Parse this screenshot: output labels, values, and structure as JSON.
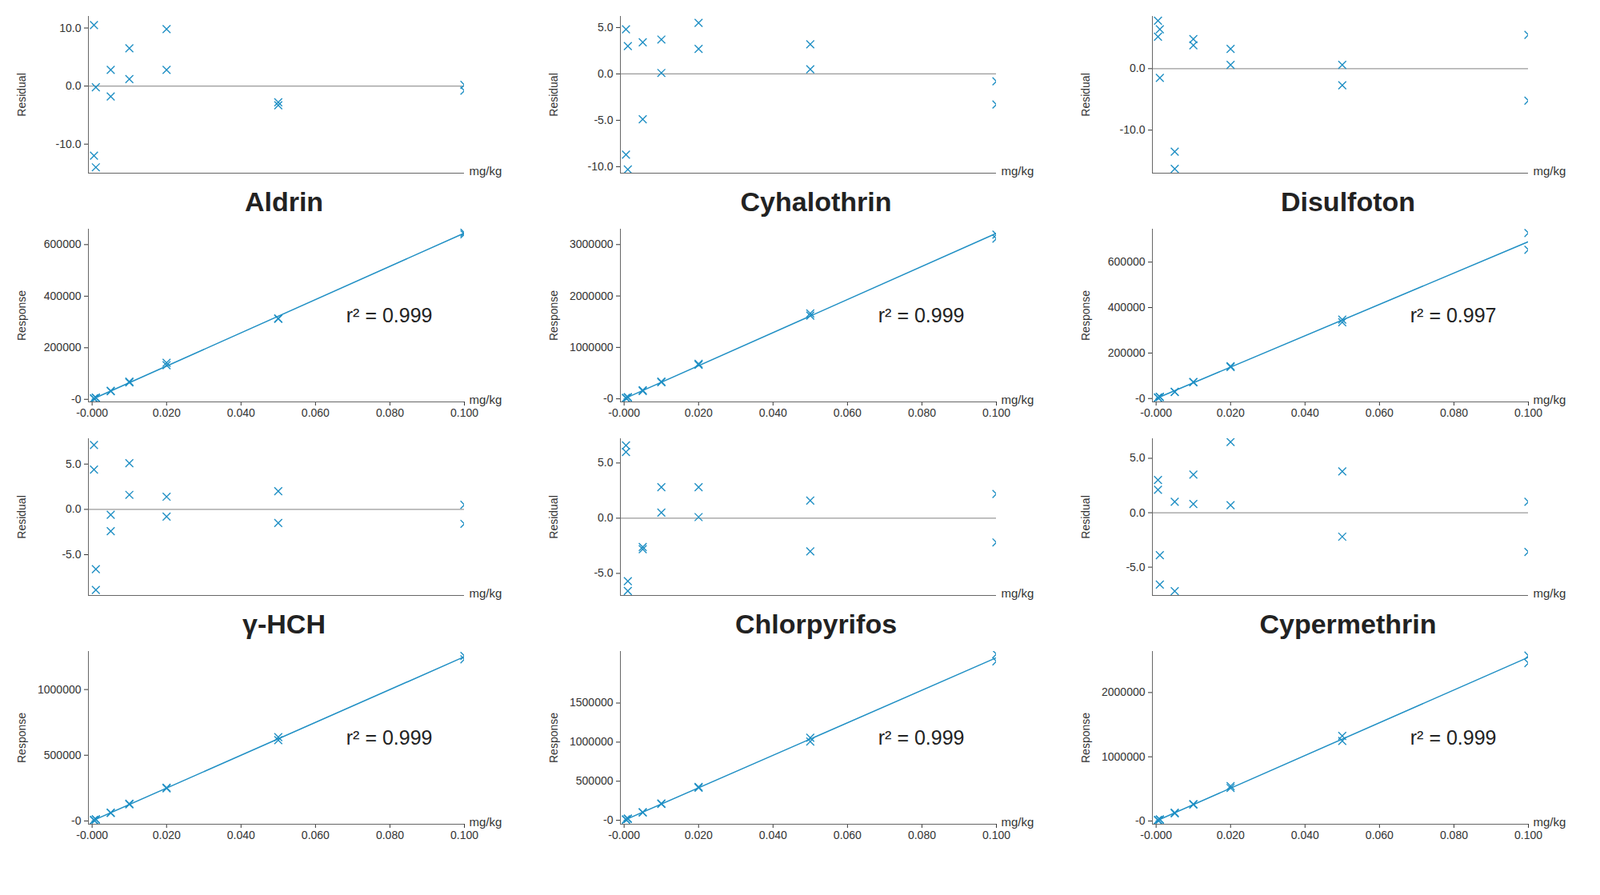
{
  "chart_data": [
    {
      "type": "scatter",
      "ylabel": "Residual",
      "xlabel": "mg/kg",
      "tick_labels": "y",
      "marker": "x",
      "color": "#1f8fc4",
      "hline": 0,
      "x": [
        0.0005,
        0.0005,
        0.001,
        0.001,
        0.005,
        0.005,
        0.01,
        0.01,
        0.02,
        0.02,
        0.05,
        0.05,
        0.1,
        0.1
      ],
      "values": [
        10.5,
        -12,
        -0.2,
        -14,
        2.8,
        -1.8,
        6.5,
        1.2,
        9.8,
        2.8,
        -2.8,
        -3.3,
        0.2,
        -0.8
      ],
      "xlim": [
        -0.001,
        0.1
      ],
      "ylim": [
        -15,
        12
      ],
      "yticks": [
        {
          "value": -10,
          "label": "-10.0"
        },
        {
          "value": 0,
          "label": "0.0"
        },
        {
          "value": 10,
          "label": "10.0"
        }
      ]
    },
    {
      "type": "scatter",
      "title": "Aldrin",
      "ylabel": "Response",
      "xlabel": "mg/kg",
      "marker": "x",
      "color": "#1f8fc4",
      "annotation": "r² = 0.999",
      "x": [
        0.0005,
        0.0005,
        0.001,
        0.001,
        0.005,
        0.005,
        0.01,
        0.01,
        0.02,
        0.02,
        0.05,
        0.05,
        0.1,
        0.1
      ],
      "values": [
        3564,
        2838,
        6437,
        5547,
        33153,
        31670,
        68693,
        65274,
        141642,
        132612,
        313470,
        311858,
        646290,
        639840
      ],
      "fit": {
        "x": [
          0,
          0.1
        ],
        "values": [
          0,
          645000
        ]
      },
      "xlim": [
        -0.001,
        0.1
      ],
      "ylim": [
        -10000,
        660000
      ],
      "xticks": [
        {
          "value": 0,
          "label": "-0.000"
        },
        {
          "value": 0.02,
          "label": "0.020"
        },
        {
          "value": 0.04,
          "label": "0.040"
        },
        {
          "value": 0.06,
          "label": "0.060"
        },
        {
          "value": 0.08,
          "label": "0.080"
        },
        {
          "value": 0.1,
          "label": "0.100"
        }
      ],
      "yticks": [
        {
          "value": 0,
          "label": "-0"
        },
        200000,
        400000,
        600000
      ]
    },
    {
      "type": "scatter",
      "ylabel": "Residual",
      "xlabel": "mg/kg",
      "tick_labels": "y",
      "marker": "x",
      "color": "#1f8fc4",
      "hline": 0,
      "x": [
        0.0005,
        0.0005,
        0.001,
        0.001,
        0.005,
        0.005,
        0.01,
        0.01,
        0.02,
        0.02,
        0.05,
        0.05,
        0.1,
        0.1
      ],
      "values": [
        4.8,
        -8.7,
        3.0,
        -10.3,
        3.4,
        -4.9,
        3.7,
        0.1,
        5.5,
        2.7,
        3.2,
        0.5,
        -0.8,
        -3.3
      ],
      "xlim": [
        -0.001,
        0.1
      ],
      "ylim": [
        -10.7,
        6.2
      ],
      "yticks": [
        {
          "value": -10,
          "label": "-10.0"
        },
        {
          "value": -5,
          "label": "-5.0"
        },
        {
          "value": 0,
          "label": "0.0"
        },
        {
          "value": 5,
          "label": "5.0"
        }
      ]
    },
    {
      "type": "scatter",
      "title": "Cyhalothrin",
      "ylabel": "Response",
      "xlabel": "mg/kg",
      "marker": "x",
      "color": "#1f8fc4",
      "annotation": "r² = 0.999",
      "x": [
        0.0005,
        0.0005,
        0.001,
        0.001,
        0.005,
        0.005,
        0.01,
        0.01,
        0.02,
        0.02,
        0.05,
        0.05,
        0.1,
        0.1
      ],
      "values": [
        16873,
        14699,
        33166,
        28883,
        166474,
        153111,
        333914,
        322322,
        679420,
        661388,
        1661520,
        1618050,
        3194240,
        3113740
      ],
      "fit": {
        "x": [
          0,
          0.1
        ],
        "values": [
          0,
          3220000
        ]
      },
      "xlim": [
        -0.001,
        0.1
      ],
      "ylim": [
        -60000,
        3300000
      ],
      "xticks": [
        {
          "value": 0,
          "label": "-0.000"
        },
        {
          "value": 0.02,
          "label": "0.020"
        },
        {
          "value": 0.04,
          "label": "0.040"
        },
        {
          "value": 0.06,
          "label": "0.060"
        },
        {
          "value": 0.08,
          "label": "0.080"
        },
        {
          "value": 0.1,
          "label": "0.100"
        }
      ],
      "yticks": [
        {
          "value": 0,
          "label": "-0"
        },
        1000000,
        2000000,
        3000000
      ]
    },
    {
      "type": "scatter",
      "ylabel": "Residual",
      "xlabel": "mg/kg",
      "tick_labels": "y",
      "marker": "x",
      "color": "#1f8fc4",
      "hline": 0,
      "x": [
        0.0005,
        0.0005,
        0.001,
        0.001,
        0.005,
        0.005,
        0.01,
        0.01,
        0.02,
        0.02,
        0.05,
        0.05,
        0.1,
        0.1
      ],
      "values": [
        7.8,
        5.2,
        6.4,
        -1.5,
        -13.5,
        -16.3,
        4.8,
        3.8,
        3.2,
        0.6,
        0.6,
        -2.7,
        5.5,
        -5.2
      ],
      "xlim": [
        -0.001,
        0.1
      ],
      "ylim": [
        -17,
        8.5
      ],
      "yticks": [
        {
          "value": -10,
          "label": "-10.0"
        },
        {
          "value": 0,
          "label": "0.0"
        }
      ]
    },
    {
      "type": "scatter",
      "title": "Disulfoton",
      "ylabel": "Response",
      "xlabel": "mg/kg",
      "marker": "x",
      "color": "#1f8fc4",
      "annotation": "r² = 0.997",
      "x": [
        0.0005,
        0.0005,
        0.001,
        0.001,
        0.005,
        0.005,
        0.01,
        0.01,
        0.02,
        0.02,
        0.05,
        0.05,
        0.1,
        0.1
      ],
      "values": [
        3719,
        3629,
        7342,
        6797,
        29843,
        28877,
        72312,
        71622,
        142416,
        138828,
        347070,
        335685,
        727950,
        654120
      ],
      "fit": {
        "x": [
          0,
          0.1
        ],
        "values": [
          0,
          690000
        ]
      },
      "xlim": [
        -0.001,
        0.1
      ],
      "ylim": [
        -15000,
        745000
      ],
      "xticks": [
        {
          "value": 0,
          "label": "-0.000"
        },
        {
          "value": 0.02,
          "label": "0.020"
        },
        {
          "value": 0.04,
          "label": "0.040"
        },
        {
          "value": 0.06,
          "label": "0.060"
        },
        {
          "value": 0.08,
          "label": "0.080"
        },
        {
          "value": 0.1,
          "label": "0.100"
        }
      ],
      "yticks": [
        {
          "value": 0,
          "label": "-0"
        },
        200000,
        400000,
        600000
      ]
    },
    {
      "type": "scatter",
      "ylabel": "Residual",
      "xlabel": "mg/kg",
      "tick_labels": "y",
      "marker": "x",
      "color": "#1f8fc4",
      "hline": 0,
      "x": [
        0.0005,
        0.0005,
        0.001,
        0.001,
        0.005,
        0.005,
        0.01,
        0.01,
        0.02,
        0.02,
        0.05,
        0.05,
        0.1,
        0.1
      ],
      "values": [
        7.1,
        4.4,
        -6.6,
        -8.9,
        -0.6,
        -2.4,
        5.1,
        1.6,
        1.4,
        -0.8,
        2.0,
        -1.5,
        0.5,
        -1.6
      ],
      "xlim": [
        -0.001,
        0.1
      ],
      "ylim": [
        -9.5,
        7.8
      ],
      "yticks": [
        {
          "value": -5,
          "label": "-5.0"
        },
        {
          "value": 0,
          "label": "0.0"
        },
        {
          "value": 5,
          "label": "5.0"
        }
      ]
    },
    {
      "type": "scatter",
      "title": "γ-HCH",
      "ylabel": "Response",
      "xlabel": "mg/kg",
      "marker": "x",
      "color": "#1f8fc4",
      "annotation": "r² = 0.999",
      "x": [
        0.0005,
        0.0005,
        0.001,
        0.001,
        0.005,
        0.005,
        0.01,
        0.01,
        0.02,
        0.02,
        0.05,
        0.05,
        0.1,
        0.1
      ],
      "values": [
        6694,
        6525,
        11675,
        11388,
        62125,
        61000,
        131375,
        127000,
        253500,
        248000,
        637500,
        615625,
        1256250,
        1230000
      ],
      "fit": {
        "x": [
          0,
          0.1
        ],
        "values": [
          0,
          1250000
        ]
      },
      "xlim": [
        -0.001,
        0.1
      ],
      "ylim": [
        -25000,
        1290000
      ],
      "xticks": [
        {
          "value": 0,
          "label": "-0.000"
        },
        {
          "value": 0.02,
          "label": "0.020"
        },
        {
          "value": 0.04,
          "label": "0.040"
        },
        {
          "value": 0.06,
          "label": "0.060"
        },
        {
          "value": 0.08,
          "label": "0.080"
        },
        {
          "value": 0.1,
          "label": "0.100"
        }
      ],
      "yticks": [
        {
          "value": 0,
          "label": "-0"
        },
        500000,
        1000000
      ]
    },
    {
      "type": "scatter",
      "ylabel": "Residual",
      "xlabel": "mg/kg",
      "tick_labels": "y",
      "marker": "x",
      "color": "#1f8fc4",
      "hline": 0,
      "x": [
        0.0005,
        0.0005,
        0.001,
        0.001,
        0.005,
        0.005,
        0.01,
        0.01,
        0.02,
        0.02,
        0.05,
        0.05,
        0.1,
        0.1
      ],
      "values": [
        6.6,
        6.0,
        -5.7,
        -6.6,
        -2.6,
        -2.8,
        2.8,
        0.5,
        2.8,
        0.1,
        1.6,
        -3.0,
        2.2,
        -2.2
      ],
      "xlim": [
        -0.001,
        0.1
      ],
      "ylim": [
        -7,
        7.2
      ],
      "yticks": [
        {
          "value": -5,
          "label": "-5.0"
        },
        {
          "value": 0,
          "label": "0.0"
        },
        {
          "value": 5,
          "label": "5.0"
        }
      ]
    },
    {
      "type": "scatter",
      "title": "Chlorpyrifos",
      "ylabel": "Response",
      "xlabel": "mg/kg",
      "marker": "x",
      "color": "#1f8fc4",
      "annotation": "r² = 0.999",
      "x": [
        0.0005,
        0.0005,
        0.001,
        0.001,
        0.005,
        0.005,
        0.01,
        0.01,
        0.02,
        0.02,
        0.05,
        0.05,
        0.1,
        0.1
      ],
      "values": [
        11086,
        11024,
        19614,
        19427,
        101296,
        101088,
        213824,
        209040,
        427648,
        416416,
        1056640,
        1008800,
        2125760,
        2034240
      ],
      "fit": {
        "x": [
          0,
          0.1
        ],
        "values": [
          0,
          2080000
        ]
      },
      "xlim": [
        -0.001,
        0.1
      ],
      "ylim": [
        -50000,
        2160000
      ],
      "xticks": [
        {
          "value": 0,
          "label": "-0.000"
        },
        {
          "value": 0.02,
          "label": "0.020"
        },
        {
          "value": 0.04,
          "label": "0.040"
        },
        {
          "value": 0.06,
          "label": "0.060"
        },
        {
          "value": 0.08,
          "label": "0.080"
        },
        {
          "value": 0.1,
          "label": "0.100"
        }
      ],
      "yticks": [
        {
          "value": 0,
          "label": "-0"
        },
        500000,
        1000000,
        1500000
      ]
    },
    {
      "type": "scatter",
      "ylabel": "Residual",
      "xlabel": "mg/kg",
      "tick_labels": "y",
      "marker": "x",
      "color": "#1f8fc4",
      "hline": 0,
      "x": [
        0.0005,
        0.0005,
        0.001,
        0.001,
        0.005,
        0.005,
        0.01,
        0.01,
        0.02,
        0.02,
        0.05,
        0.05,
        0.1,
        0.1
      ],
      "values": [
        3.0,
        2.1,
        -3.9,
        -6.6,
        1.0,
        -7.2,
        3.5,
        0.8,
        6.5,
        0.7,
        3.8,
        -2.2,
        1.0,
        -3.6
      ],
      "xlim": [
        -0.001,
        0.1
      ],
      "ylim": [
        -7.6,
        6.8
      ],
      "yticks": [
        {
          "value": -5,
          "label": "-5.0"
        },
        {
          "value": 0,
          "label": "0.0"
        },
        {
          "value": 5,
          "label": "5.0"
        }
      ]
    },
    {
      "type": "scatter",
      "title": "Cypermethrin",
      "ylabel": "Response",
      "xlabel": "mg/kg",
      "marker": "x",
      "color": "#1f8fc4",
      "annotation": "r² = 0.999",
      "x": [
        0.0005,
        0.0005,
        0.001,
        0.001,
        0.005,
        0.005,
        0.01,
        0.01,
        0.02,
        0.02,
        0.05,
        0.05,
        0.1,
        0.1
      ],
      "values": [
        13133,
        13018,
        24506,
        23817,
        128775,
        118320,
        263925,
        257040,
        543150,
        513570,
        1323450,
        1246950,
        2575500,
        2458200
      ],
      "fit": {
        "x": [
          0,
          0.1
        ],
        "values": [
          0,
          2550000
        ]
      },
      "xlim": [
        -0.001,
        0.1
      ],
      "ylim": [
        -50000,
        2640000
      ],
      "xticks": [
        {
          "value": 0,
          "label": "-0.000"
        },
        {
          "value": 0.02,
          "label": "0.020"
        },
        {
          "value": 0.04,
          "label": "0.040"
        },
        {
          "value": 0.06,
          "label": "0.060"
        },
        {
          "value": 0.08,
          "label": "0.080"
        },
        {
          "value": 0.1,
          "label": "0.100"
        }
      ],
      "yticks": [
        {
          "value": 0,
          "label": "-0"
        },
        1000000,
        2000000
      ]
    }
  ]
}
